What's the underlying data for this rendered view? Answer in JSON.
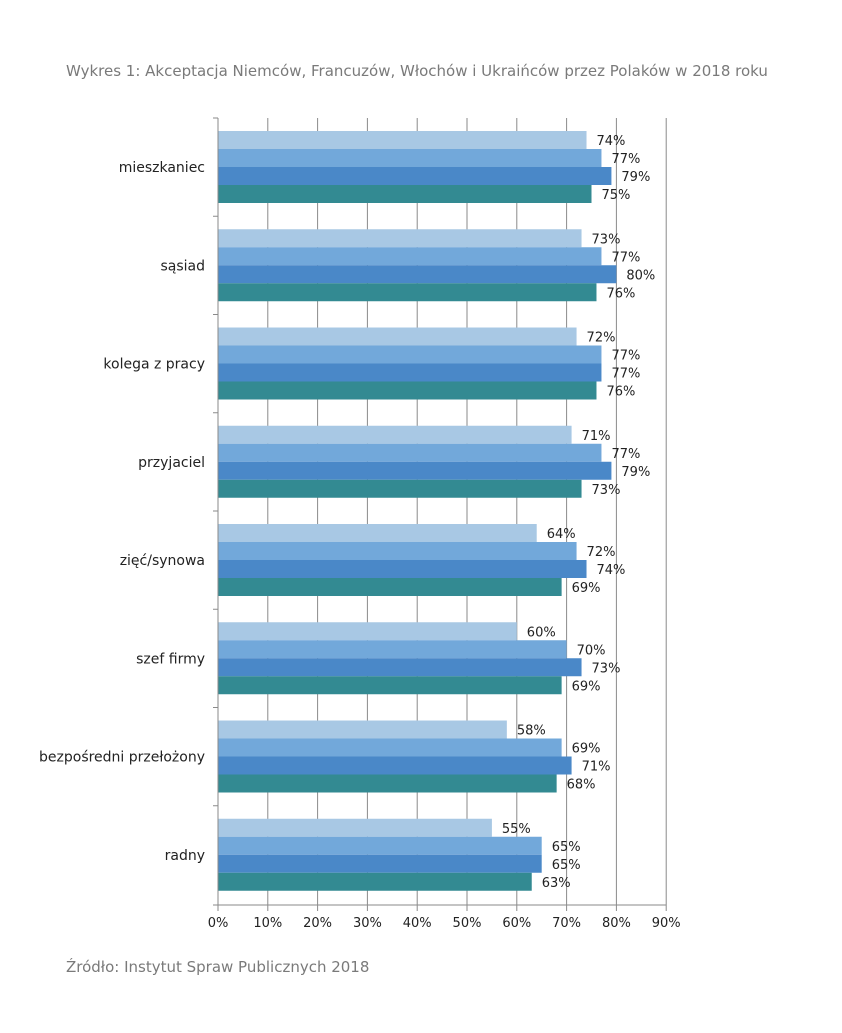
{
  "title": "Wykres 1: Akceptacja Niemców, Francuzów, Włochów i Ukraińców przez Polaków w 2018 roku",
  "source": "Źródło: Instytut Spraw Publicznych 2018",
  "chart_data": {
    "type": "bar",
    "orientation": "horizontal",
    "categories": [
      "mieszkaniec",
      "sąsiad",
      "kolega z pracy",
      "przyjaciel",
      "zięć/synowa",
      "szef firmy",
      "bezpośredni przełożony",
      "radny"
    ],
    "series": [
      {
        "values": [
          74,
          73,
          72,
          71,
          64,
          60,
          58,
          55
        ],
        "color": "#a8c8e4"
      },
      {
        "values": [
          77,
          77,
          77,
          77,
          72,
          70,
          69,
          65
        ],
        "color": "#72a8da"
      },
      {
        "values": [
          79,
          80,
          77,
          79,
          74,
          73,
          71,
          65
        ],
        "color": "#4a88c8"
      },
      {
        "values": [
          75,
          76,
          76,
          73,
          69,
          69,
          68,
          63
        ],
        "color": "#338a92"
      }
    ],
    "value_suffix": "%",
    "xlim": [
      0,
      90
    ],
    "xticks": [
      0,
      10,
      20,
      30,
      40,
      50,
      60,
      70,
      80,
      90
    ],
    "xtick_labels": [
      "0%",
      "10%",
      "20%",
      "30%",
      "40%",
      "50%",
      "60%",
      "70%",
      "80%",
      "90%"
    ],
    "grid": "vertical",
    "legend": "none",
    "title": "Wykres 1: Akceptacja Niemców, Francuzów, Włochów i Ukraińców przez Polaków w 2018 roku",
    "xlabel": "",
    "ylabel": ""
  }
}
